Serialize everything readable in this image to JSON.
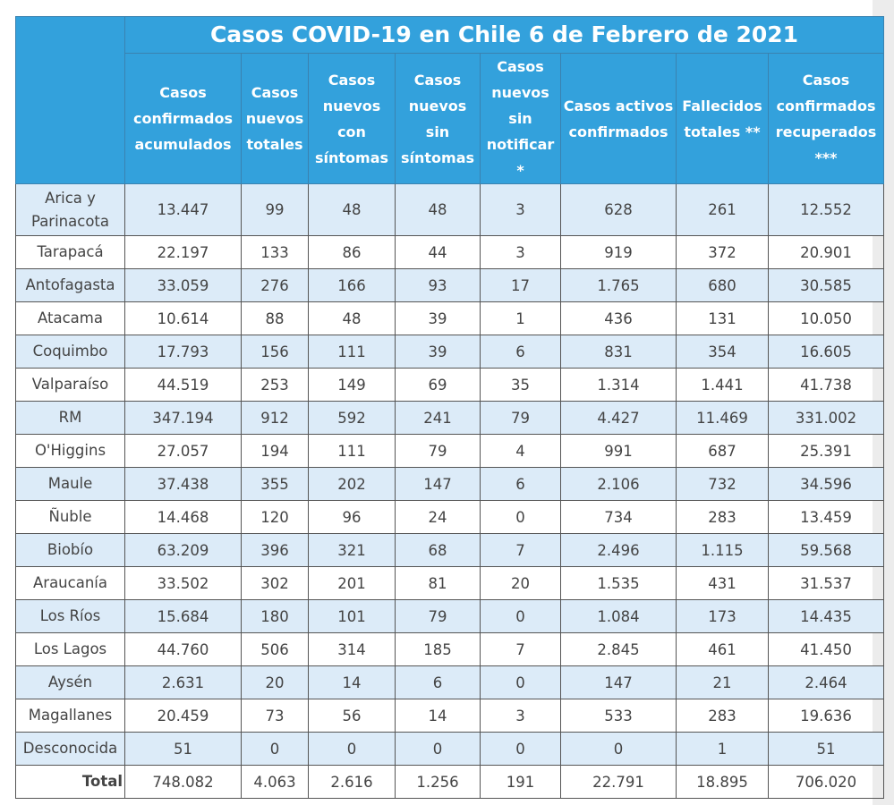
{
  "title": "Casos COVID-19 en Chile 6 de Febrero de 2021",
  "columns": [
    "Casos confirmados acumulados",
    "Casos nuevos totales",
    "Casos nuevos con síntomas",
    "Casos nuevos sin síntomas",
    "Casos nuevos sin notificar *",
    "Casos activos confirmados",
    "Fallecidos totales **",
    "Casos confirmados recuperados ***"
  ],
  "rows": [
    {
      "region": "Arica y Parinacota",
      "values": [
        "13.447",
        "99",
        "48",
        "48",
        "3",
        "628",
        "261",
        "12.552"
      ]
    },
    {
      "region": "Tarapacá",
      "values": [
        "22.197",
        "133",
        "86",
        "44",
        "3",
        "919",
        "372",
        "20.901"
      ]
    },
    {
      "region": "Antofagasta",
      "values": [
        "33.059",
        "276",
        "166",
        "93",
        "17",
        "1.765",
        "680",
        "30.585"
      ]
    },
    {
      "region": "Atacama",
      "values": [
        "10.614",
        "88",
        "48",
        "39",
        "1",
        "436",
        "131",
        "10.050"
      ]
    },
    {
      "region": "Coquimbo",
      "values": [
        "17.793",
        "156",
        "111",
        "39",
        "6",
        "831",
        "354",
        "16.605"
      ]
    },
    {
      "region": "Valparaíso",
      "values": [
        "44.519",
        "253",
        "149",
        "69",
        "35",
        "1.314",
        "1.441",
        "41.738"
      ]
    },
    {
      "region": "RM",
      "values": [
        "347.194",
        "912",
        "592",
        "241",
        "79",
        "4.427",
        "11.469",
        "331.002"
      ]
    },
    {
      "region": "O'Higgins",
      "values": [
        "27.057",
        "194",
        "111",
        "79",
        "4",
        "991",
        "687",
        "25.391"
      ]
    },
    {
      "region": "Maule",
      "values": [
        "37.438",
        "355",
        "202",
        "147",
        "6",
        "2.106",
        "732",
        "34.596"
      ]
    },
    {
      "region": "Ñuble",
      "values": [
        "14.468",
        "120",
        "96",
        "24",
        "0",
        "734",
        "283",
        "13.459"
      ]
    },
    {
      "region": "Biobío",
      "values": [
        "63.209",
        "396",
        "321",
        "68",
        "7",
        "2.496",
        "1.115",
        "59.568"
      ]
    },
    {
      "region": "Araucanía",
      "values": [
        "33.502",
        "302",
        "201",
        "81",
        "20",
        "1.535",
        "431",
        "31.537"
      ]
    },
    {
      "region": "Los Ríos",
      "values": [
        "15.684",
        "180",
        "101",
        "79",
        "0",
        "1.084",
        "173",
        "14.435"
      ]
    },
    {
      "region": "Los Lagos",
      "values": [
        "44.760",
        "506",
        "314",
        "185",
        "7",
        "2.845",
        "461",
        "41.450"
      ]
    },
    {
      "region": "Aysén",
      "values": [
        "2.631",
        "20",
        "14",
        "6",
        "0",
        "147",
        "21",
        "2.464"
      ]
    },
    {
      "region": "Magallanes",
      "values": [
        "20.459",
        "73",
        "56",
        "14",
        "3",
        "533",
        "283",
        "19.636"
      ]
    },
    {
      "region": "Desconocida",
      "values": [
        "51",
        "0",
        "0",
        "0",
        "0",
        "0",
        "1",
        "51"
      ]
    }
  ],
  "total": {
    "region": "Total",
    "values": [
      "748.082",
      "4.063",
      "2.616",
      "1.256",
      "191",
      "22.791",
      "18.895",
      "706.020"
    ]
  }
}
